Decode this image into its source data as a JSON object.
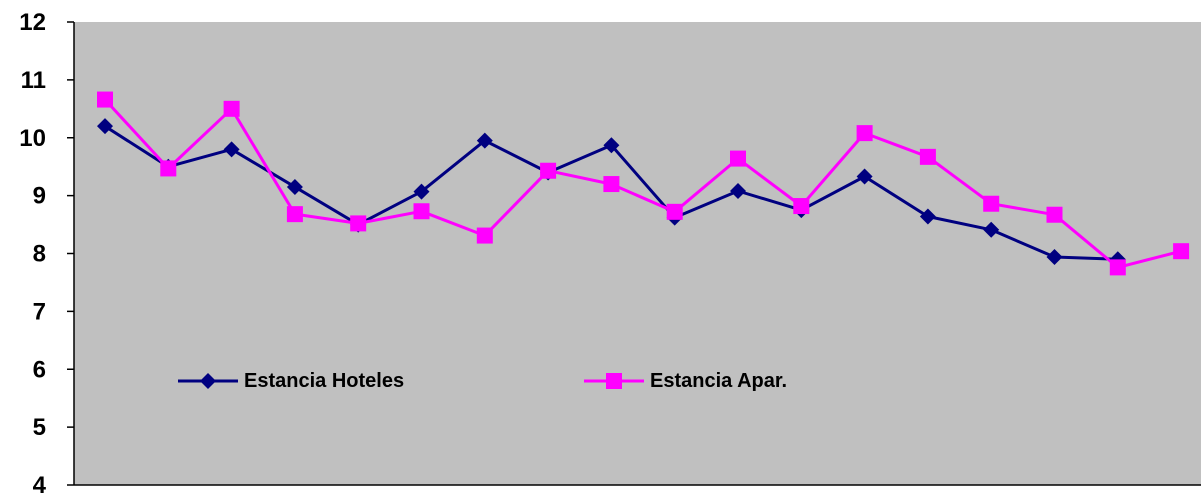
{
  "chart_data": {
    "type": "line",
    "title": "",
    "xlabel": "",
    "ylabel": "",
    "ylim": [
      4,
      12
    ],
    "yticks": [
      4,
      5,
      6,
      7,
      8,
      9,
      10,
      11,
      12
    ],
    "grid": false,
    "legend_position": "center-left",
    "colors": {
      "plot_background": "#c0c0c0"
    },
    "series": [
      {
        "name": "Estancia Hoteles",
        "color": "#000080",
        "marker": "diamond",
        "values": [
          10.2,
          9.5,
          9.8,
          9.15,
          8.5,
          9.07,
          9.95,
          9.4,
          9.87,
          8.62,
          9.08,
          8.75,
          9.33,
          8.64,
          8.41,
          7.94,
          7.9
        ]
      },
      {
        "name": "Estancia Apar.",
        "color": "#ff00ff",
        "marker": "square",
        "values": [
          10.66,
          9.47,
          10.5,
          8.68,
          8.52,
          8.73,
          8.31,
          9.43,
          9.2,
          8.72,
          9.64,
          8.82,
          10.08,
          9.67,
          8.86,
          8.67,
          7.76,
          8.04
        ]
      }
    ]
  }
}
